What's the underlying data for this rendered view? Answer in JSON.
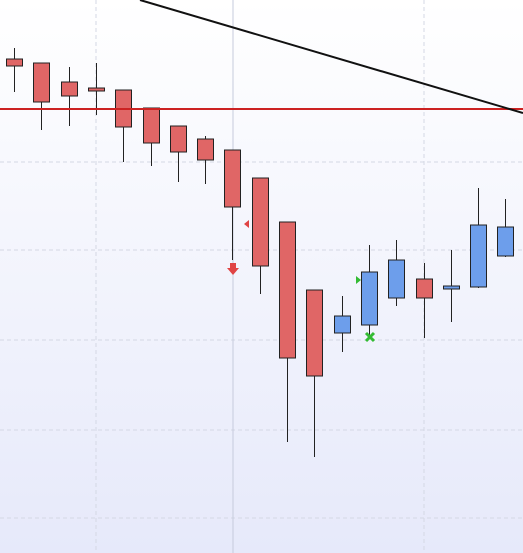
{
  "chart_data": {
    "type": "candlestick",
    "open": [
      494,
      490,
      471,
      465,
      463,
      445,
      427,
      414,
      403,
      375,
      331,
      263,
      220,
      228,
      255,
      274,
      264,
      266,
      297
    ],
    "high": [
      505,
      490,
      486,
      490,
      463,
      445,
      427,
      417,
      403,
      375,
      331,
      263,
      257,
      308,
      313,
      290,
      303,
      365,
      354
    ],
    "low": [
      461,
      423,
      427,
      438,
      391,
      387,
      371,
      369,
      293,
      259,
      111,
      96,
      201,
      217,
      247,
      215,
      231,
      265,
      296
    ],
    "close": [
      487,
      451,
      457,
      462,
      426,
      410,
      401,
      393,
      346,
      287,
      195,
      177,
      237,
      281,
      293,
      255,
      267,
      328,
      326
    ],
    "ylim": [
      0,
      553
    ],
    "up_color": "#6d9eeb",
    "down_color": "#e06666"
  }
}
